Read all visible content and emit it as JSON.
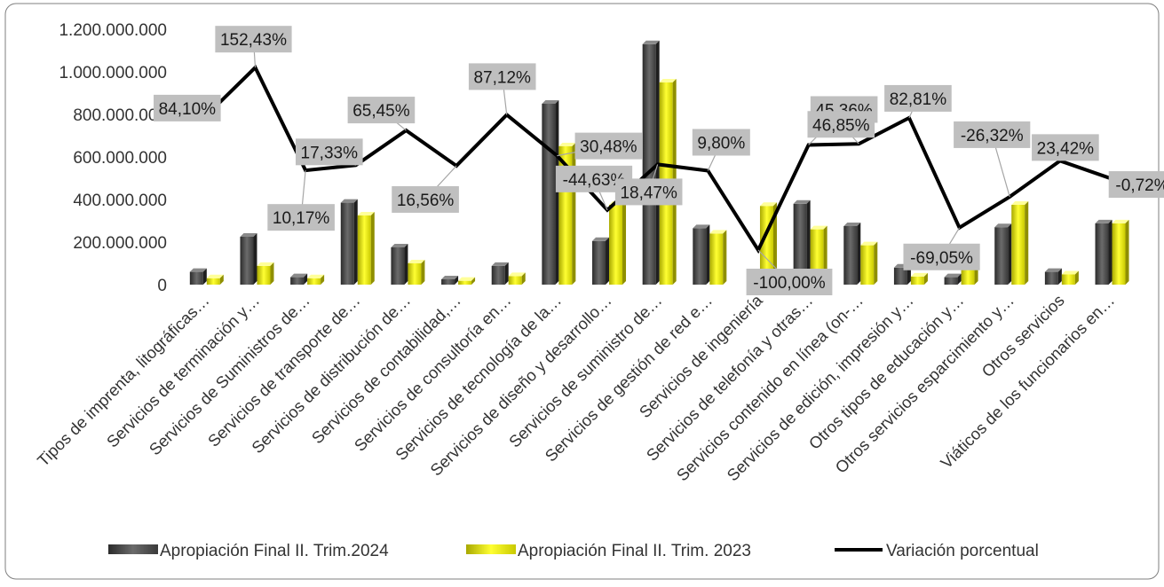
{
  "chart_data": {
    "type": "bar",
    "categories": [
      "Tipos de imprenta, litográficas…",
      "Servicios de terminación y…",
      "Servicios de Suministros de…",
      "Servicios de transporte de…",
      "Servicios de distribución de…",
      "Servicios de contabilidad,…",
      "Servicios de consultoría en…",
      "Servicios de tecnología de la…",
      "Servicios de diseño y desarrollo…",
      "Servicios de suministro de…",
      "Servicios de gestión de red e…",
      "Servicios de ingeniería",
      "Servicios de telefonía y otras…",
      "Servicios contenido en línea (on-…",
      "Servicios de edición, impresión y…",
      "Otros tipos de educación y…",
      "Otros servicios esparcimiento y…",
      "Otros servicios",
      "Viáticos de los funcionarios en…"
    ],
    "series": [
      {
        "name": "Apropiación Final II. Trim.2024",
        "kind": "bar",
        "color": "#4d4d4d",
        "values": [
          60000000,
          225000000,
          35000000,
          385000000,
          175000000,
          25000000,
          88000000,
          850000000,
          205000000,
          1130000000,
          265000000,
          0,
          380000000,
          275000000,
          80000000,
          35000000,
          270000000,
          60000000,
          288000000
        ]
      },
      {
        "name": "Apropiación Final II. Trim. 2023",
        "kind": "bar",
        "color": "#ffff00",
        "values": [
          30000000,
          88000000,
          30000000,
          325000000,
          100000000,
          18000000,
          40000000,
          650000000,
          375000000,
          950000000,
          240000000,
          370000000,
          260000000,
          185000000,
          38000000,
          115000000,
          375000000,
          48000000,
          288000000
        ]
      },
      {
        "name": "Variación porcentual",
        "kind": "line",
        "color": "#000000",
        "values": [
          84.1,
          152.43,
          10.17,
          17.33,
          65.45,
          16.56,
          87.12,
          30.48,
          -44.63,
          18.47,
          9.8,
          -100.0,
          45.36,
          46.85,
          82.81,
          -69.05,
          -26.32,
          23.42,
          -0.72
        ],
        "data_labels": [
          "84,10%",
          "152,43%",
          "10,17%",
          "17,33%",
          "65,45%",
          "16,56%",
          "87,12%",
          "30,48%",
          "-44,63%",
          "18,47%",
          "9,80%",
          "-100,00%",
          "45,36%",
          "46,85%",
          "82,81%",
          "-69,05%",
          "-26,32%",
          "23,42%",
          "-0,72%"
        ]
      }
    ],
    "y_axis": {
      "ylim": [
        0,
        1200000000
      ],
      "ticks": [
        0,
        200000000,
        400000000,
        600000000,
        800000000,
        1000000000,
        1200000000
      ],
      "tick_labels": [
        "0",
        "200.000.000",
        "400.000.000",
        "600.000.000",
        "800.000.000",
        "1.000.000.000",
        "1.200.000.000"
      ]
    },
    "line_scale": [
      -100,
      160
    ],
    "legend": {
      "position": "bottom"
    },
    "grid": false,
    "title": "",
    "xlabel": "",
    "ylabel": ""
  }
}
